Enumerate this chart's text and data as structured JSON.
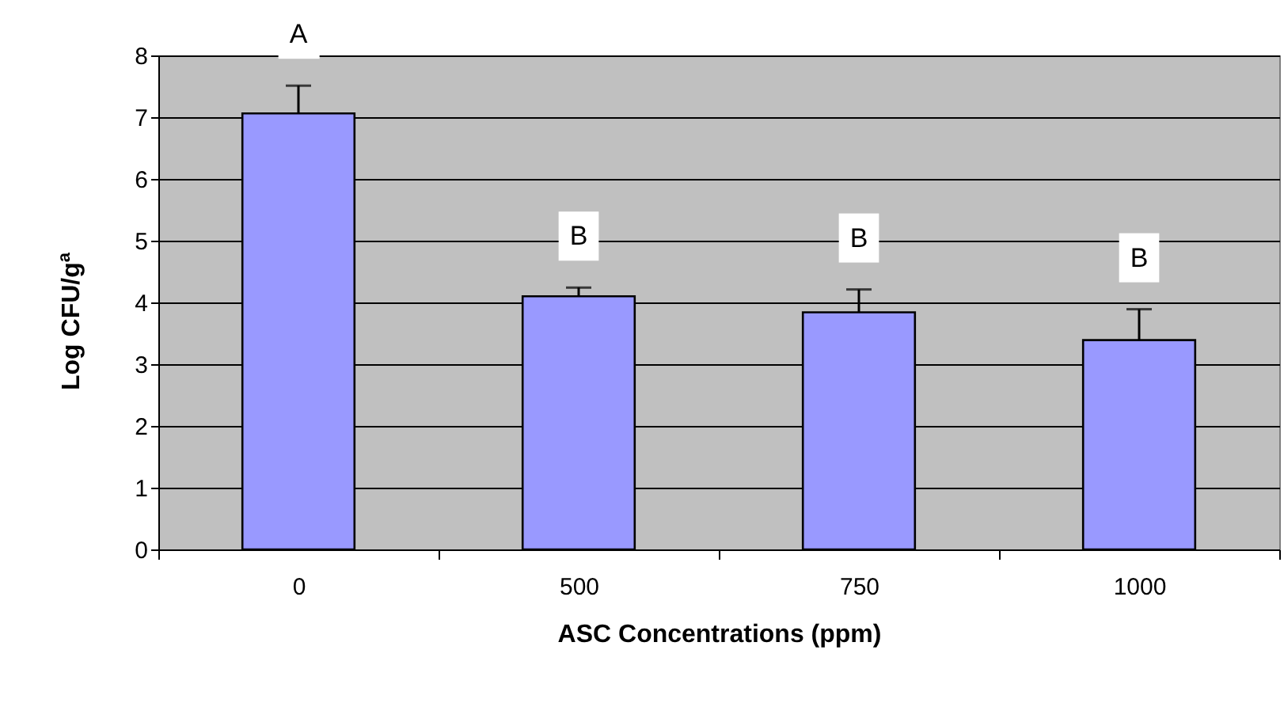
{
  "chart_data": {
    "type": "bar",
    "xlabel": "ASC Concentrations (ppm)",
    "ylabel": "Log CFU/g$^{a}$",
    "categories": [
      "0",
      "500",
      "750",
      "1000"
    ],
    "values": [
      7.06,
      4.1,
      3.84,
      3.39
    ],
    "color": "#9999ff",
    "errors": [
      [
        7.06,
        7.51
      ],
      [
        4.1,
        4.24
      ],
      [
        3.84,
        4.21
      ],
      [
        3.39,
        3.89
      ]
    ],
    "ylim": [
      0,
      8
    ],
    "yticks": [
      0,
      1,
      2,
      3,
      4,
      5,
      6,
      7,
      8
    ],
    "grid": "y",
    "annotations": [
      "A",
      "B",
      "B",
      "B"
    ]
  }
}
